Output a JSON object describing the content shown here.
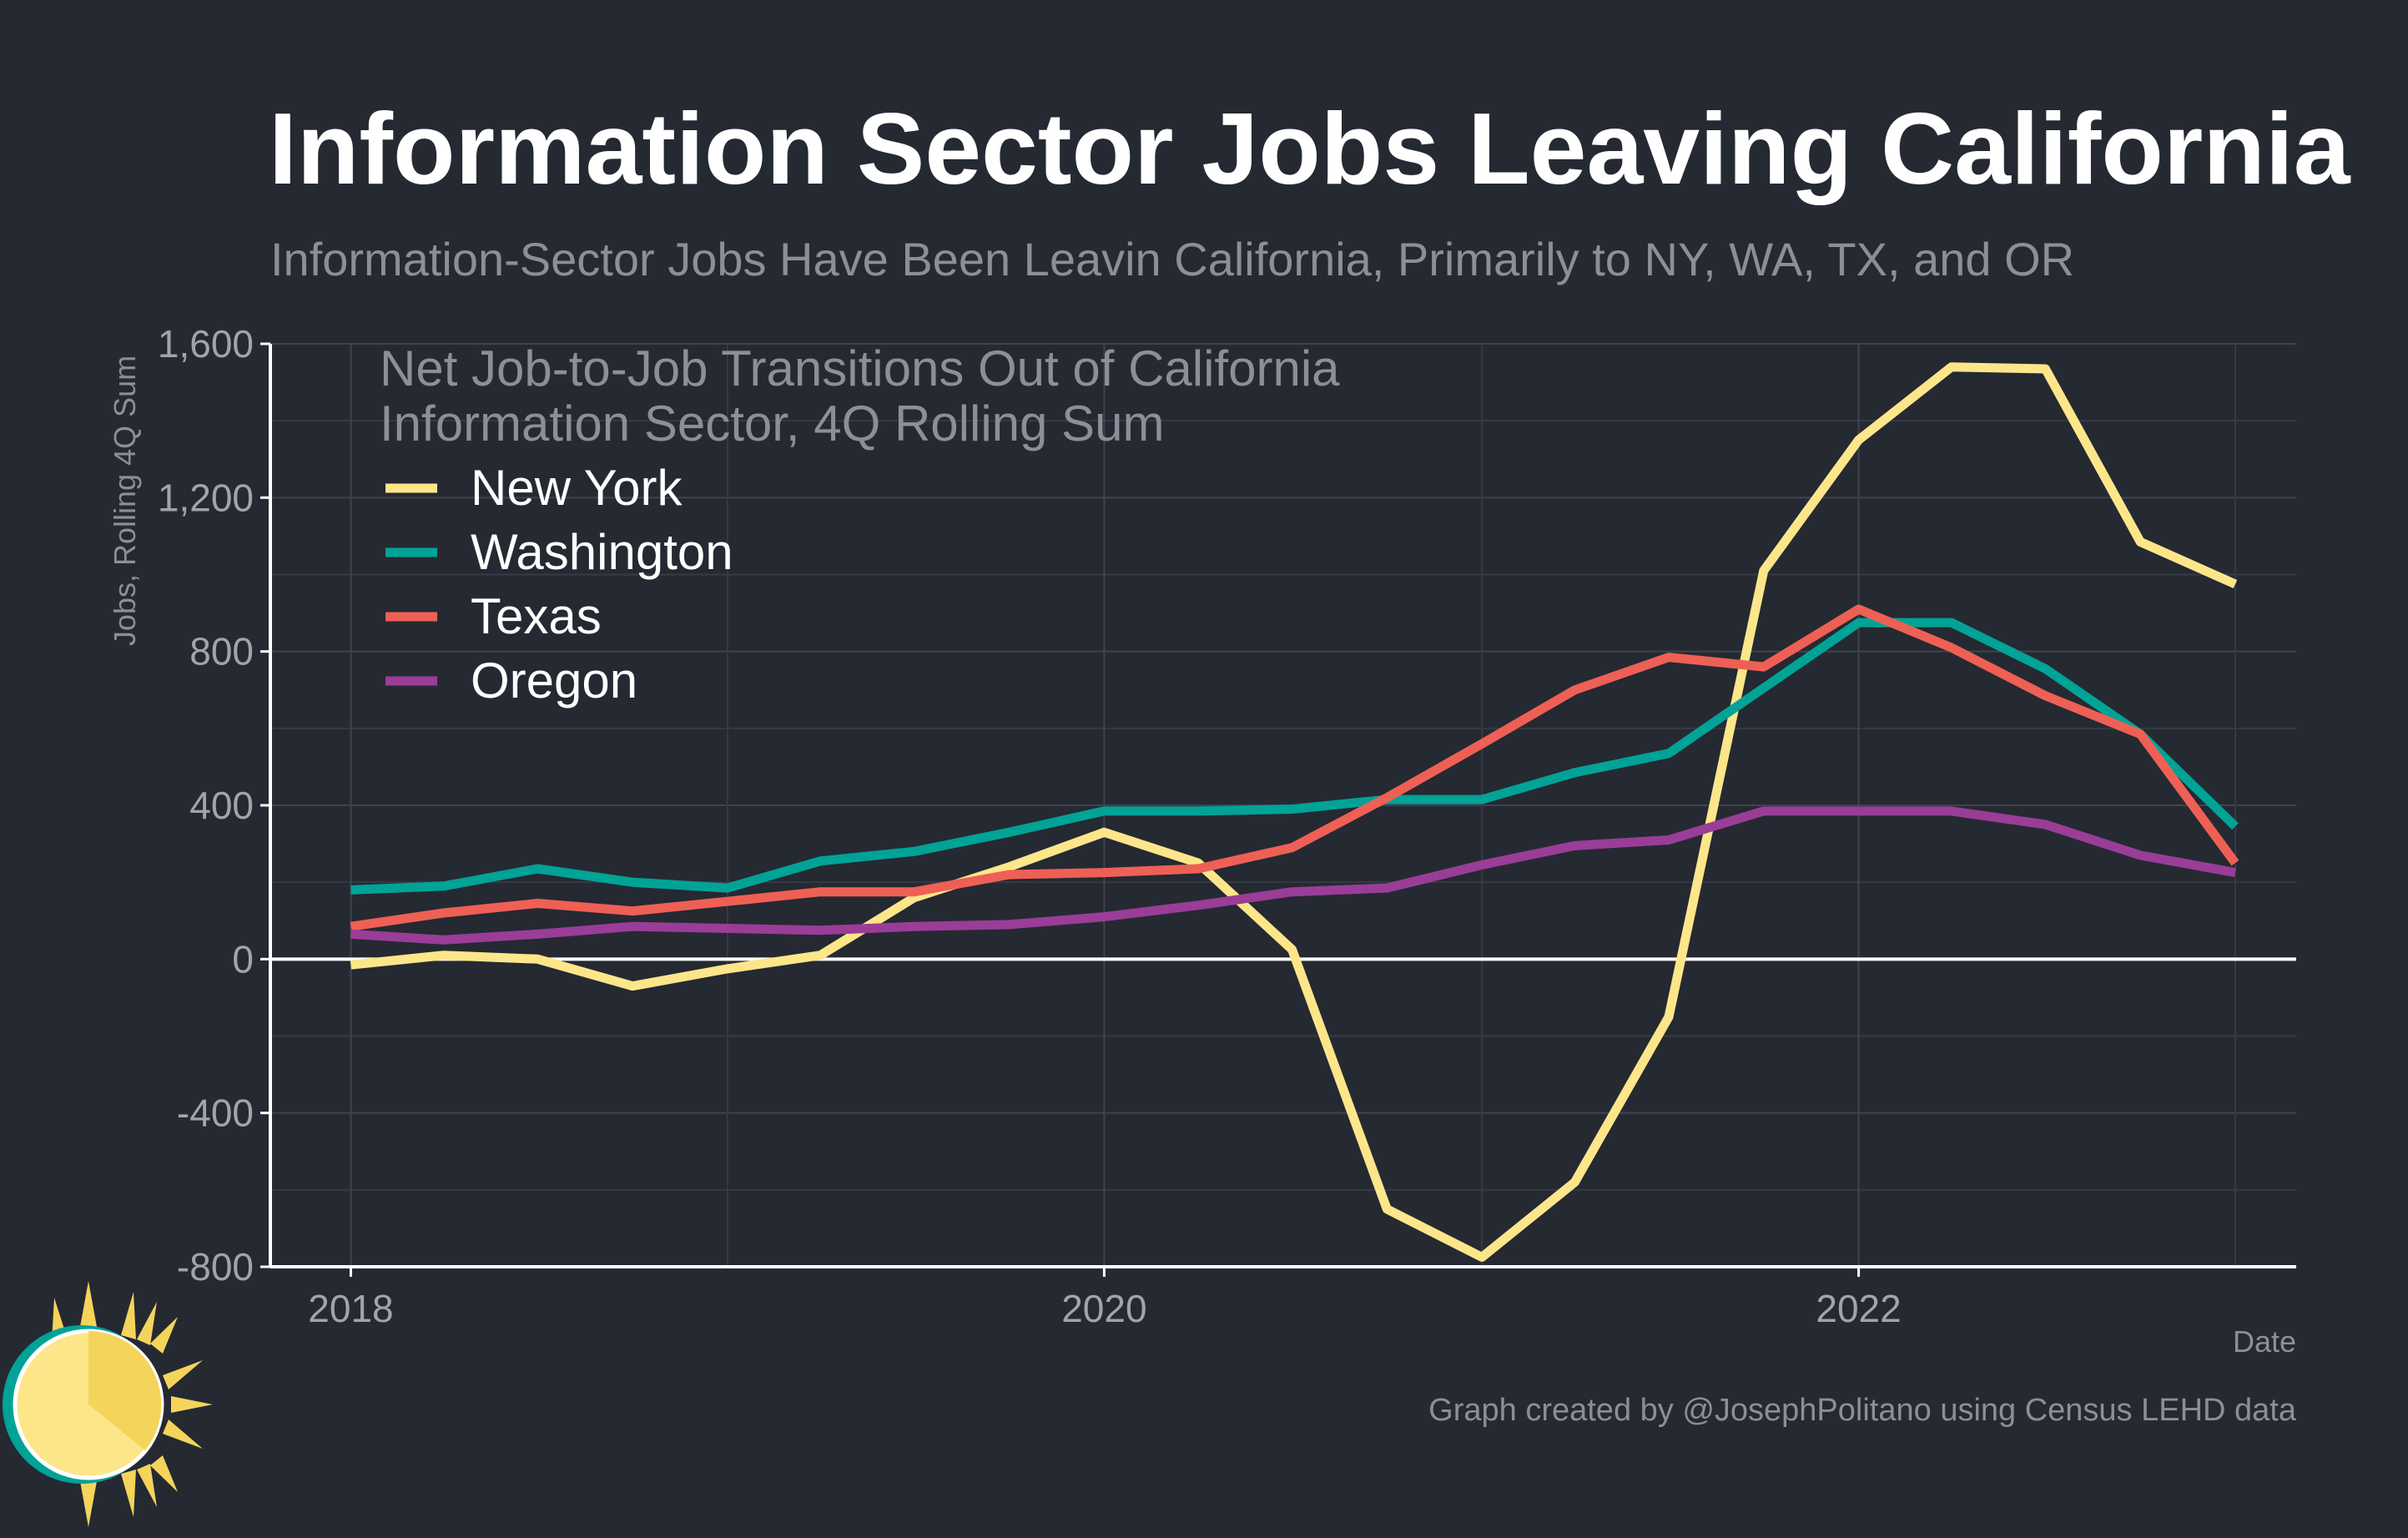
{
  "chart_data": {
    "type": "line",
    "title": "Information Sector Jobs Leaving California",
    "subtitle": "Information-Sector Jobs Have Been Leavin California, Primarily to NY, WA, TX, and OR",
    "annotation": [
      "Net Job-to-Job Transitions Out of California",
      "Information Sector, 4Q Rolling Sum"
    ],
    "xlabel": "Date",
    "ylabel": "Jobs, Rolling 4Q Sum",
    "caption": "Graph created by @JosephPolitano using Census LEHD data",
    "x": [
      "2018-01-01",
      "2018-04-01",
      "2018-07-01",
      "2018-10-01",
      "2019-01-01",
      "2019-04-01",
      "2019-07-01",
      "2019-10-01",
      "2020-01-01",
      "2020-04-01",
      "2020-07-01",
      "2020-10-01",
      "2021-01-01",
      "2021-04-01",
      "2021-07-01",
      "2021-10-01",
      "2022-01-01",
      "2022-04-01",
      "2022-07-01",
      "2022-10-01",
      "2023-01-01"
    ],
    "xlim": [
      "2017-10-15",
      "2023-03-01"
    ],
    "ylim": [
      -800,
      1600
    ],
    "xticks": [
      {
        "label": "2018",
        "x": "2018-01-01"
      },
      {
        "label": "2020",
        "x": "2020-01-01"
      },
      {
        "label": "2022",
        "x": "2022-01-01"
      }
    ],
    "x_minor_gridlines": [
      "2019-01-01",
      "2021-01-01",
      "2023-01-01"
    ],
    "yticks": [
      {
        "label": "1,600",
        "value": 1600
      },
      {
        "label": "1,200",
        "value": 1200
      },
      {
        "label": "800",
        "value": 800
      },
      {
        "label": "400",
        "value": 400
      },
      {
        "label": "0",
        "value": 0
      },
      {
        "label": "-400",
        "value": -400
      },
      {
        "label": "-800",
        "value": -800
      }
    ],
    "y_minor_gridlines": [
      1400,
      1000,
      600,
      200,
      -200,
      -600
    ],
    "grid": true,
    "legend_position": "top-left",
    "series": [
      {
        "name": "New York",
        "color": "#fde68a",
        "values": [
          -15,
          10,
          0,
          -70,
          -25,
          10,
          160,
          240,
          330,
          250,
          25,
          -650,
          -775,
          -580,
          -150,
          1010,
          1350,
          1540,
          1535,
          1085,
          975
        ]
      },
      {
        "name": "Washington",
        "color": "#00a396",
        "values": [
          180,
          190,
          235,
          200,
          185,
          255,
          280,
          330,
          385,
          385,
          390,
          415,
          415,
          485,
          535,
          705,
          875,
          875,
          755,
          585,
          345
        ]
      },
      {
        "name": "Texas",
        "color": "#ee6055",
        "values": [
          85,
          120,
          145,
          125,
          150,
          175,
          175,
          220,
          225,
          235,
          290,
          420,
          560,
          700,
          785,
          760,
          910,
          810,
          685,
          585,
          250
        ]
      },
      {
        "name": "Oregon",
        "color": "#9a3d97",
        "values": [
          65,
          50,
          65,
          85,
          80,
          75,
          85,
          90,
          110,
          140,
          175,
          185,
          245,
          295,
          310,
          385,
          385,
          385,
          350,
          270,
          225
        ]
      }
    ]
  }
}
